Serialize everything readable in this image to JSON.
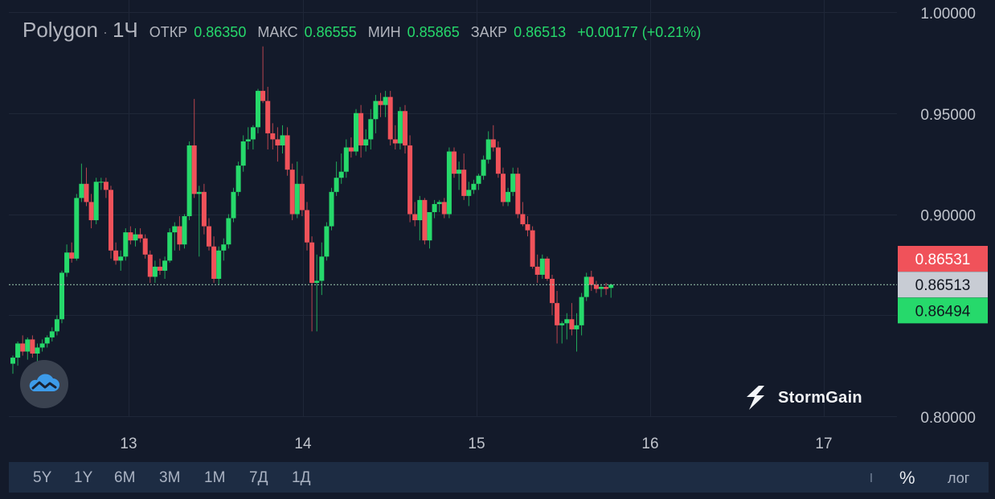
{
  "header": {
    "symbol": "Polygon",
    "separator": "·",
    "timeframe": "1Ч",
    "open_label": "ОТКР",
    "open_value": "0.86350",
    "high_label": "МАКС",
    "high_value": "0.86555",
    "low_label": "МИН",
    "low_value": "0.85865",
    "close_label": "ЗАКР",
    "close_value": "0.86513",
    "change": "+0.00177 (+0.21%)"
  },
  "price_scale": {
    "ticks": [
      "1.00000",
      "0.95000",
      "0.90000",
      "0.80000"
    ],
    "ask_label": "0.86531",
    "last_label": "0.86513",
    "bid_label": "0.86494"
  },
  "time_scale": {
    "ticks": [
      "13",
      "14",
      "15",
      "16",
      "17"
    ]
  },
  "ranges": [
    "5Y",
    "1Y",
    "6M",
    "3M",
    "1M",
    "7Д",
    "1Д"
  ],
  "percent_label": "%",
  "log_label": "лог",
  "watermark": "StormGain",
  "colors": {
    "background": "#131a2a",
    "up": "#26d96b",
    "down": "#f0525a",
    "ask": "#f0525a",
    "bid": "#26d96b",
    "last": "#c8ccd4"
  },
  "chart_data": {
    "type": "candlestick",
    "timeframe": "1Ч",
    "x_ticks": [
      "13",
      "14",
      "15",
      "16",
      "17"
    ],
    "y_ticks": [
      1.0,
      0.95,
      0.9,
      0.8
    ],
    "ylim": [
      0.8,
      1.0
    ],
    "grid": true,
    "last_price": 0.86513,
    "ask": 0.86531,
    "bid": 0.86494,
    "ohlc": [
      [
        0.826,
        0.83,
        0.821,
        0.829
      ],
      [
        0.829,
        0.837,
        0.825,
        0.836
      ],
      [
        0.836,
        0.84,
        0.83,
        0.832
      ],
      [
        0.832,
        0.839,
        0.828,
        0.838
      ],
      [
        0.838,
        0.84,
        0.829,
        0.831
      ],
      [
        0.831,
        0.836,
        0.827,
        0.834
      ],
      [
        0.834,
        0.838,
        0.832,
        0.836
      ],
      [
        0.836,
        0.84,
        0.834,
        0.839
      ],
      [
        0.839,
        0.844,
        0.837,
        0.842
      ],
      [
        0.842,
        0.85,
        0.84,
        0.848
      ],
      [
        0.848,
        0.872,
        0.846,
        0.871
      ],
      [
        0.871,
        0.885,
        0.869,
        0.881
      ],
      [
        0.881,
        0.886,
        0.876,
        0.878
      ],
      [
        0.878,
        0.91,
        0.877,
        0.908
      ],
      [
        0.908,
        0.925,
        0.906,
        0.915
      ],
      [
        0.915,
        0.923,
        0.904,
        0.906
      ],
      [
        0.906,
        0.91,
        0.893,
        0.897
      ],
      [
        0.897,
        0.918,
        0.895,
        0.916
      ],
      [
        0.916,
        0.918,
        0.912,
        0.916
      ],
      [
        0.916,
        0.918,
        0.908,
        0.912
      ],
      [
        0.912,
        0.914,
        0.878,
        0.882
      ],
      [
        0.882,
        0.886,
        0.875,
        0.877
      ],
      [
        0.877,
        0.882,
        0.872,
        0.879
      ],
      [
        0.879,
        0.893,
        0.877,
        0.891
      ],
      [
        0.891,
        0.894,
        0.885,
        0.887
      ],
      [
        0.887,
        0.893,
        0.884,
        0.89
      ],
      [
        0.89,
        0.893,
        0.886,
        0.888
      ],
      [
        0.888,
        0.89,
        0.878,
        0.88
      ],
      [
        0.88,
        0.882,
        0.866,
        0.869
      ],
      [
        0.869,
        0.877,
        0.866,
        0.874
      ],
      [
        0.874,
        0.878,
        0.87,
        0.872
      ],
      [
        0.872,
        0.879,
        0.868,
        0.877
      ],
      [
        0.877,
        0.893,
        0.876,
        0.891
      ],
      [
        0.891,
        0.896,
        0.882,
        0.894
      ],
      [
        0.894,
        0.899,
        0.882,
        0.885
      ],
      [
        0.885,
        0.9,
        0.883,
        0.899
      ],
      [
        0.899,
        0.936,
        0.897,
        0.934
      ],
      [
        0.934,
        0.957,
        0.908,
        0.91
      ],
      [
        0.91,
        0.914,
        0.879,
        0.911
      ],
      [
        0.911,
        0.915,
        0.89,
        0.894
      ],
      [
        0.894,
        0.898,
        0.882,
        0.884
      ],
      [
        0.884,
        0.889,
        0.866,
        0.868
      ],
      [
        0.868,
        0.884,
        0.865,
        0.882
      ],
      [
        0.882,
        0.888,
        0.877,
        0.885
      ],
      [
        0.885,
        0.9,
        0.883,
        0.898
      ],
      [
        0.898,
        0.913,
        0.896,
        0.911
      ],
      [
        0.911,
        0.926,
        0.909,
        0.924
      ],
      [
        0.924,
        0.939,
        0.921,
        0.936
      ],
      [
        0.936,
        0.943,
        0.932,
        0.937
      ],
      [
        0.937,
        0.944,
        0.932,
        0.943
      ],
      [
        0.943,
        0.962,
        0.94,
        0.961
      ],
      [
        0.961,
        0.983,
        0.955,
        0.956
      ],
      [
        0.956,
        0.963,
        0.932,
        0.94
      ],
      [
        0.94,
        0.945,
        0.932,
        0.937
      ],
      [
        0.937,
        0.943,
        0.926,
        0.934
      ],
      [
        0.934,
        0.944,
        0.93,
        0.939
      ],
      [
        0.939,
        0.943,
        0.919,
        0.922
      ],
      [
        0.922,
        0.925,
        0.897,
        0.9
      ],
      [
        0.9,
        0.926,
        0.898,
        0.915
      ],
      [
        0.915,
        0.919,
        0.899,
        0.902
      ],
      [
        0.902,
        0.906,
        0.882,
        0.886
      ],
      [
        0.886,
        0.889,
        0.842,
        0.866
      ],
      [
        0.866,
        0.88,
        0.842,
        0.867
      ],
      [
        0.867,
        0.886,
        0.86,
        0.879
      ],
      [
        0.879,
        0.896,
        0.877,
        0.894
      ],
      [
        0.894,
        0.913,
        0.892,
        0.911
      ],
      [
        0.911,
        0.926,
        0.909,
        0.918
      ],
      [
        0.918,
        0.93,
        0.915,
        0.921
      ],
      [
        0.921,
        0.937,
        0.918,
        0.933
      ],
      [
        0.933,
        0.938,
        0.928,
        0.931
      ],
      [
        0.931,
        0.952,
        0.929,
        0.95
      ],
      [
        0.95,
        0.954,
        0.928,
        0.934
      ],
      [
        0.934,
        0.942,
        0.931,
        0.937
      ],
      [
        0.937,
        0.952,
        0.932,
        0.947
      ],
      [
        0.947,
        0.959,
        0.94,
        0.956
      ],
      [
        0.956,
        0.96,
        0.948,
        0.954
      ],
      [
        0.954,
        0.961,
        0.948,
        0.958
      ],
      [
        0.958,
        0.961,
        0.934,
        0.937
      ],
      [
        0.937,
        0.944,
        0.932,
        0.935
      ],
      [
        0.935,
        0.953,
        0.932,
        0.951
      ],
      [
        0.951,
        0.954,
        0.93,
        0.934
      ],
      [
        0.934,
        0.939,
        0.896,
        0.9
      ],
      [
        0.9,
        0.906,
        0.894,
        0.897
      ],
      [
        0.897,
        0.909,
        0.887,
        0.907
      ],
      [
        0.907,
        0.908,
        0.885,
        0.887
      ],
      [
        0.887,
        0.9,
        0.883,
        0.901
      ],
      [
        0.901,
        0.907,
        0.898,
        0.905
      ],
      [
        0.905,
        0.907,
        0.901,
        0.906
      ],
      [
        0.906,
        0.908,
        0.898,
        0.9
      ],
      [
        0.9,
        0.933,
        0.898,
        0.931
      ],
      [
        0.931,
        0.933,
        0.918,
        0.92
      ],
      [
        0.92,
        0.926,
        0.912,
        0.922
      ],
      [
        0.922,
        0.93,
        0.907,
        0.909
      ],
      [
        0.909,
        0.916,
        0.904,
        0.912
      ],
      [
        0.912,
        0.917,
        0.91,
        0.915
      ],
      [
        0.915,
        0.92,
        0.912,
        0.919
      ],
      [
        0.919,
        0.929,
        0.917,
        0.927
      ],
      [
        0.927,
        0.941,
        0.925,
        0.937
      ],
      [
        0.937,
        0.944,
        0.931,
        0.933
      ],
      [
        0.933,
        0.936,
        0.918,
        0.92
      ],
      [
        0.92,
        0.923,
        0.904,
        0.906
      ],
      [
        0.906,
        0.913,
        0.904,
        0.911
      ],
      [
        0.911,
        0.923,
        0.909,
        0.92
      ],
      [
        0.92,
        0.923,
        0.898,
        0.9
      ],
      [
        0.9,
        0.906,
        0.894,
        0.895
      ],
      [
        0.895,
        0.899,
        0.889,
        0.892
      ],
      [
        0.892,
        0.894,
        0.873,
        0.874
      ],
      [
        0.874,
        0.88,
        0.866,
        0.87
      ],
      [
        0.87,
        0.88,
        0.868,
        0.878
      ],
      [
        0.878,
        0.879,
        0.867,
        0.868
      ],
      [
        0.868,
        0.87,
        0.85,
        0.856
      ],
      [
        0.856,
        0.862,
        0.836,
        0.845
      ],
      [
        0.845,
        0.847,
        0.836,
        0.846
      ],
      [
        0.846,
        0.851,
        0.838,
        0.848
      ],
      [
        0.848,
        0.856,
        0.84,
        0.843
      ],
      [
        0.843,
        0.851,
        0.832,
        0.845
      ],
      [
        0.845,
        0.861,
        0.84,
        0.859
      ],
      [
        0.859,
        0.871,
        0.857,
        0.869
      ],
      [
        0.869,
        0.872,
        0.862,
        0.865
      ],
      [
        0.865,
        0.867,
        0.861,
        0.863
      ],
      [
        0.863,
        0.865,
        0.859,
        0.864
      ],
      [
        0.864,
        0.866,
        0.86,
        0.863
      ],
      [
        0.8635,
        0.86555,
        0.85865,
        0.86513
      ]
    ]
  }
}
